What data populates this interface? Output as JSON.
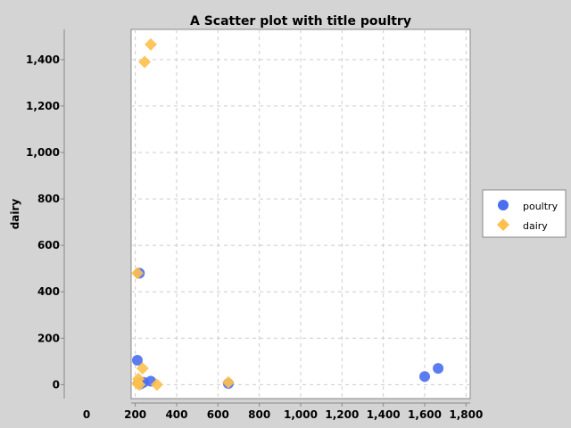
{
  "chart_data": {
    "type": "scatter",
    "title": "A Scatter plot with title poultry",
    "xlabel": "",
    "ylabel": "dairy",
    "xlim": [
      180,
      1820
    ],
    "ylim": [
      -60,
      1530
    ],
    "x_ticks": [
      200,
      400,
      600,
      800,
      1000,
      1200,
      1400,
      1600,
      1800
    ],
    "x_tick_labels": [
      "200",
      "400",
      "600",
      "800",
      "1,000",
      "1,200",
      "1,400",
      "1,600",
      "1,800"
    ],
    "x_extra_tick_label": "0",
    "y_ticks": [
      0,
      200,
      400,
      600,
      800,
      1000,
      1200,
      1400
    ],
    "y_tick_labels": [
      "0",
      "200",
      "400",
      "600",
      "800",
      "1,000",
      "1,200",
      "1,400"
    ],
    "grid": true,
    "legend_position": "right",
    "series": [
      {
        "name": "poultry",
        "color": "#4a6ef0",
        "marker": "circle",
        "points": [
          [
            210,
            105
          ],
          [
            220,
            480
          ],
          [
            215,
            8
          ],
          [
            225,
            3
          ],
          [
            240,
            10
          ],
          [
            275,
            15
          ],
          [
            650,
            5
          ],
          [
            1600,
            35
          ],
          [
            1665,
            70
          ]
        ]
      },
      {
        "name": "dairy",
        "color": "#ffc04d",
        "marker": "diamond",
        "points": [
          [
            275,
            1465
          ],
          [
            245,
            1390
          ],
          [
            210,
            480
          ],
          [
            235,
            70
          ],
          [
            215,
            25
          ],
          [
            210,
            5
          ],
          [
            220,
            0
          ],
          [
            305,
            0
          ],
          [
            650,
            10
          ]
        ]
      }
    ]
  }
}
